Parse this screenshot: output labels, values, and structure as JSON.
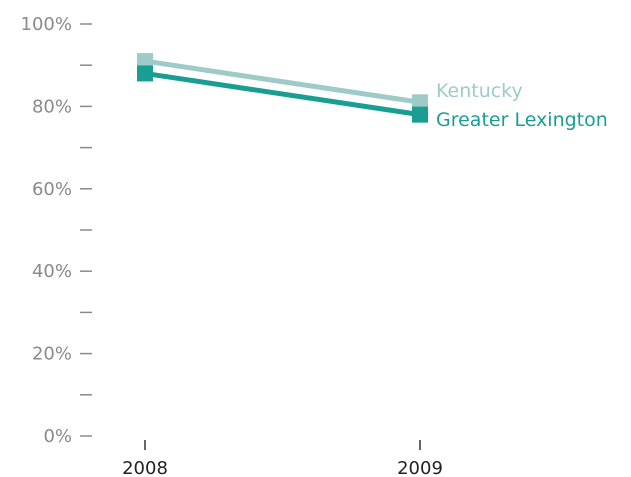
{
  "chart_data": {
    "type": "line",
    "x": [
      "2008",
      "2009"
    ],
    "ylim": [
      0,
      100
    ],
    "y_ticks": [
      "0%",
      "20%",
      "40%",
      "60%",
      "80%",
      "100%"
    ],
    "y_minor_ticks": [
      10,
      30,
      50,
      70,
      90
    ],
    "grid": false,
    "legend": "direct labels at right end of lines",
    "series": [
      {
        "name": "Kentucky",
        "values": [
          91,
          81
        ],
        "color": "#9ecbc8"
      },
      {
        "name": "Greater Lexington",
        "values": [
          88,
          78
        ],
        "color": "#1a9e93"
      }
    ]
  }
}
